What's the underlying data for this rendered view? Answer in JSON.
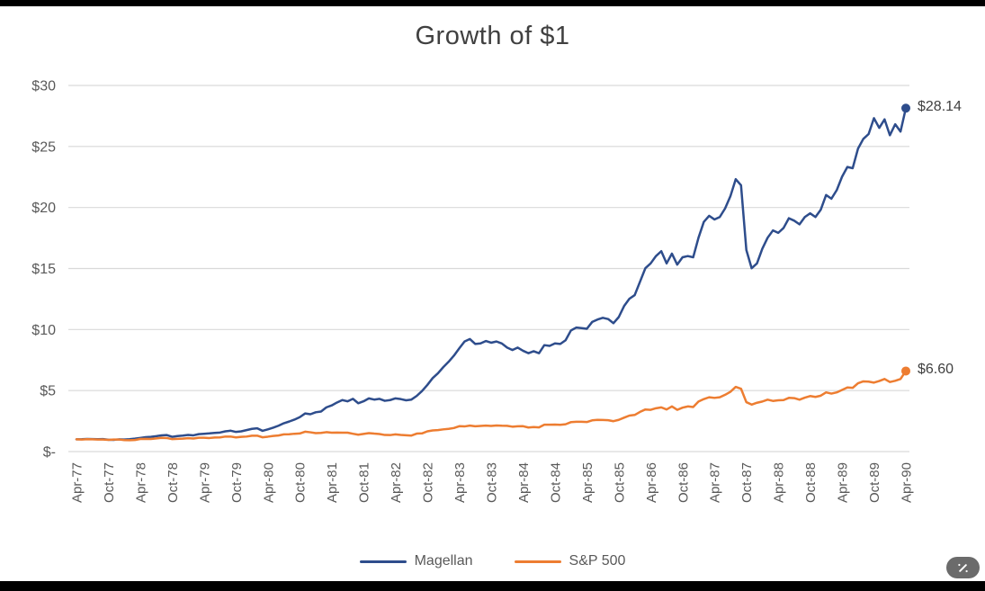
{
  "frame": {
    "top_bar_color": "#000000",
    "bottom_bar_color": "#000000"
  },
  "ui": {
    "magic_button_color": "#6b6b6b",
    "magic_button_icon": "magic-wand-icon"
  },
  "chart_data": {
    "type": "line",
    "title": "Growth of $1",
    "xlabel": "",
    "ylabel": "",
    "ylim": [
      0,
      30
    ],
    "grid": "horizontal",
    "legend_position": "bottom-center",
    "axis_text_color": "#595959",
    "gridline_color": "#d9d9d9",
    "x_tick_labels": [
      "Apr-77",
      "Oct-77",
      "Apr-78",
      "Oct-78",
      "Apr-79",
      "Oct-79",
      "Apr-80",
      "Oct-80",
      "Apr-81",
      "Oct-81",
      "Apr-82",
      "Oct-82",
      "Apr-83",
      "Oct-83",
      "Apr-84",
      "Oct-84",
      "Apr-85",
      "Oct-85",
      "Apr-86",
      "Oct-86",
      "Apr-87",
      "Oct-87",
      "Apr-88",
      "Oct-88",
      "Apr-89",
      "Oct-89",
      "Apr-90"
    ],
    "x_tick_step_months": 6,
    "y_ticks": [
      {
        "value": 0,
        "label": "$-"
      },
      {
        "value": 5,
        "label": "$5"
      },
      {
        "value": 10,
        "label": "$10"
      },
      {
        "value": 15,
        "label": "$15"
      },
      {
        "value": 20,
        "label": "$20"
      },
      {
        "value": 25,
        "label": "$25"
      },
      {
        "value": 30,
        "label": "$30"
      }
    ],
    "series": [
      {
        "name": "Magellan",
        "color": "#2e4d8c",
        "end_label": "$28.14",
        "end_value": 28.14,
        "values": [
          1.0,
          1.01,
          1.03,
          1.02,
          1.01,
          1.02,
          0.97,
          0.96,
          1.0,
          0.99,
          1.01,
          1.06,
          1.12,
          1.18,
          1.21,
          1.26,
          1.33,
          1.35,
          1.21,
          1.27,
          1.31,
          1.36,
          1.33,
          1.43,
          1.46,
          1.49,
          1.53,
          1.56,
          1.66,
          1.71,
          1.61,
          1.66,
          1.76,
          1.86,
          1.91,
          1.7,
          1.82,
          1.96,
          2.12,
          2.32,
          2.46,
          2.62,
          2.82,
          3.12,
          3.06,
          3.22,
          3.28,
          3.62,
          3.78,
          4.02,
          4.22,
          4.12,
          4.32,
          3.96,
          4.12,
          4.36,
          4.26,
          4.32,
          4.16,
          4.22,
          4.36,
          4.3,
          4.2,
          4.26,
          4.56,
          4.96,
          5.46,
          6.02,
          6.42,
          6.92,
          7.36,
          7.86,
          8.46,
          9.02,
          9.22,
          8.82,
          8.86,
          9.06,
          8.92,
          9.02,
          8.86,
          8.52,
          8.32,
          8.52,
          8.26,
          8.06,
          8.22,
          8.06,
          8.72,
          8.66,
          8.86,
          8.82,
          9.12,
          9.92,
          10.16,
          10.12,
          10.06,
          10.62,
          10.82,
          10.96,
          10.86,
          10.52,
          11.02,
          11.92,
          12.52,
          12.82,
          13.92,
          15.02,
          15.42,
          16.02,
          16.42,
          15.42,
          16.22,
          15.32,
          15.92,
          16.02,
          15.92,
          17.52,
          18.82,
          19.32,
          19.02,
          19.22,
          19.92,
          20.92,
          22.32,
          21.82,
          16.52,
          15.02,
          15.42,
          16.62,
          17.52,
          18.12,
          17.92,
          18.32,
          19.12,
          18.92,
          18.62,
          19.22,
          19.52,
          19.22,
          19.82,
          21.02,
          20.72,
          21.42,
          22.52,
          23.32,
          23.22,
          24.82,
          25.62,
          26.02,
          27.32,
          26.52,
          27.22,
          25.92,
          26.82,
          26.22,
          28.14
        ]
      },
      {
        "name": "S&P 500",
        "color": "#ed7d31",
        "end_label": "$6.60",
        "end_value": 6.6,
        "values": [
          1.0,
          0.99,
          1.01,
          1.0,
          0.99,
          0.99,
          0.96,
          0.99,
          0.99,
          0.94,
          0.93,
          0.95,
          1.03,
          1.04,
          1.03,
          1.08,
          1.12,
          1.11,
          1.02,
          1.04,
          1.06,
          1.1,
          1.07,
          1.13,
          1.13,
          1.11,
          1.15,
          1.16,
          1.23,
          1.23,
          1.16,
          1.21,
          1.23,
          1.3,
          1.3,
          1.17,
          1.22,
          1.28,
          1.32,
          1.41,
          1.42,
          1.46,
          1.48,
          1.63,
          1.58,
          1.51,
          1.53,
          1.59,
          1.55,
          1.56,
          1.55,
          1.55,
          1.46,
          1.38,
          1.45,
          1.51,
          1.47,
          1.44,
          1.36,
          1.35,
          1.41,
          1.36,
          1.34,
          1.31,
          1.47,
          1.49,
          1.66,
          1.73,
          1.76,
          1.82,
          1.86,
          1.93,
          2.08,
          2.06,
          2.13,
          2.07,
          2.1,
          2.13,
          2.1,
          2.14,
          2.12,
          2.11,
          2.04,
          2.07,
          2.08,
          1.97,
          2.01,
          1.98,
          2.2,
          2.2,
          2.21,
          2.19,
          2.24,
          2.41,
          2.44,
          2.44,
          2.42,
          2.56,
          2.6,
          2.59,
          2.57,
          2.49,
          2.6,
          2.78,
          2.95,
          3.0,
          3.25,
          3.45,
          3.42,
          3.55,
          3.62,
          3.45,
          3.7,
          3.42,
          3.6,
          3.7,
          3.65,
          4.1,
          4.3,
          4.45,
          4.4,
          4.45,
          4.65,
          4.9,
          5.3,
          5.15,
          4.05,
          3.85,
          4.0,
          4.1,
          4.25,
          4.15,
          4.2,
          4.22,
          4.4,
          4.38,
          4.25,
          4.42,
          4.55,
          4.48,
          4.58,
          4.85,
          4.75,
          4.85,
          5.05,
          5.25,
          5.22,
          5.6,
          5.75,
          5.73,
          5.65,
          5.78,
          5.95,
          5.7,
          5.8,
          5.95,
          6.6
        ]
      }
    ]
  }
}
